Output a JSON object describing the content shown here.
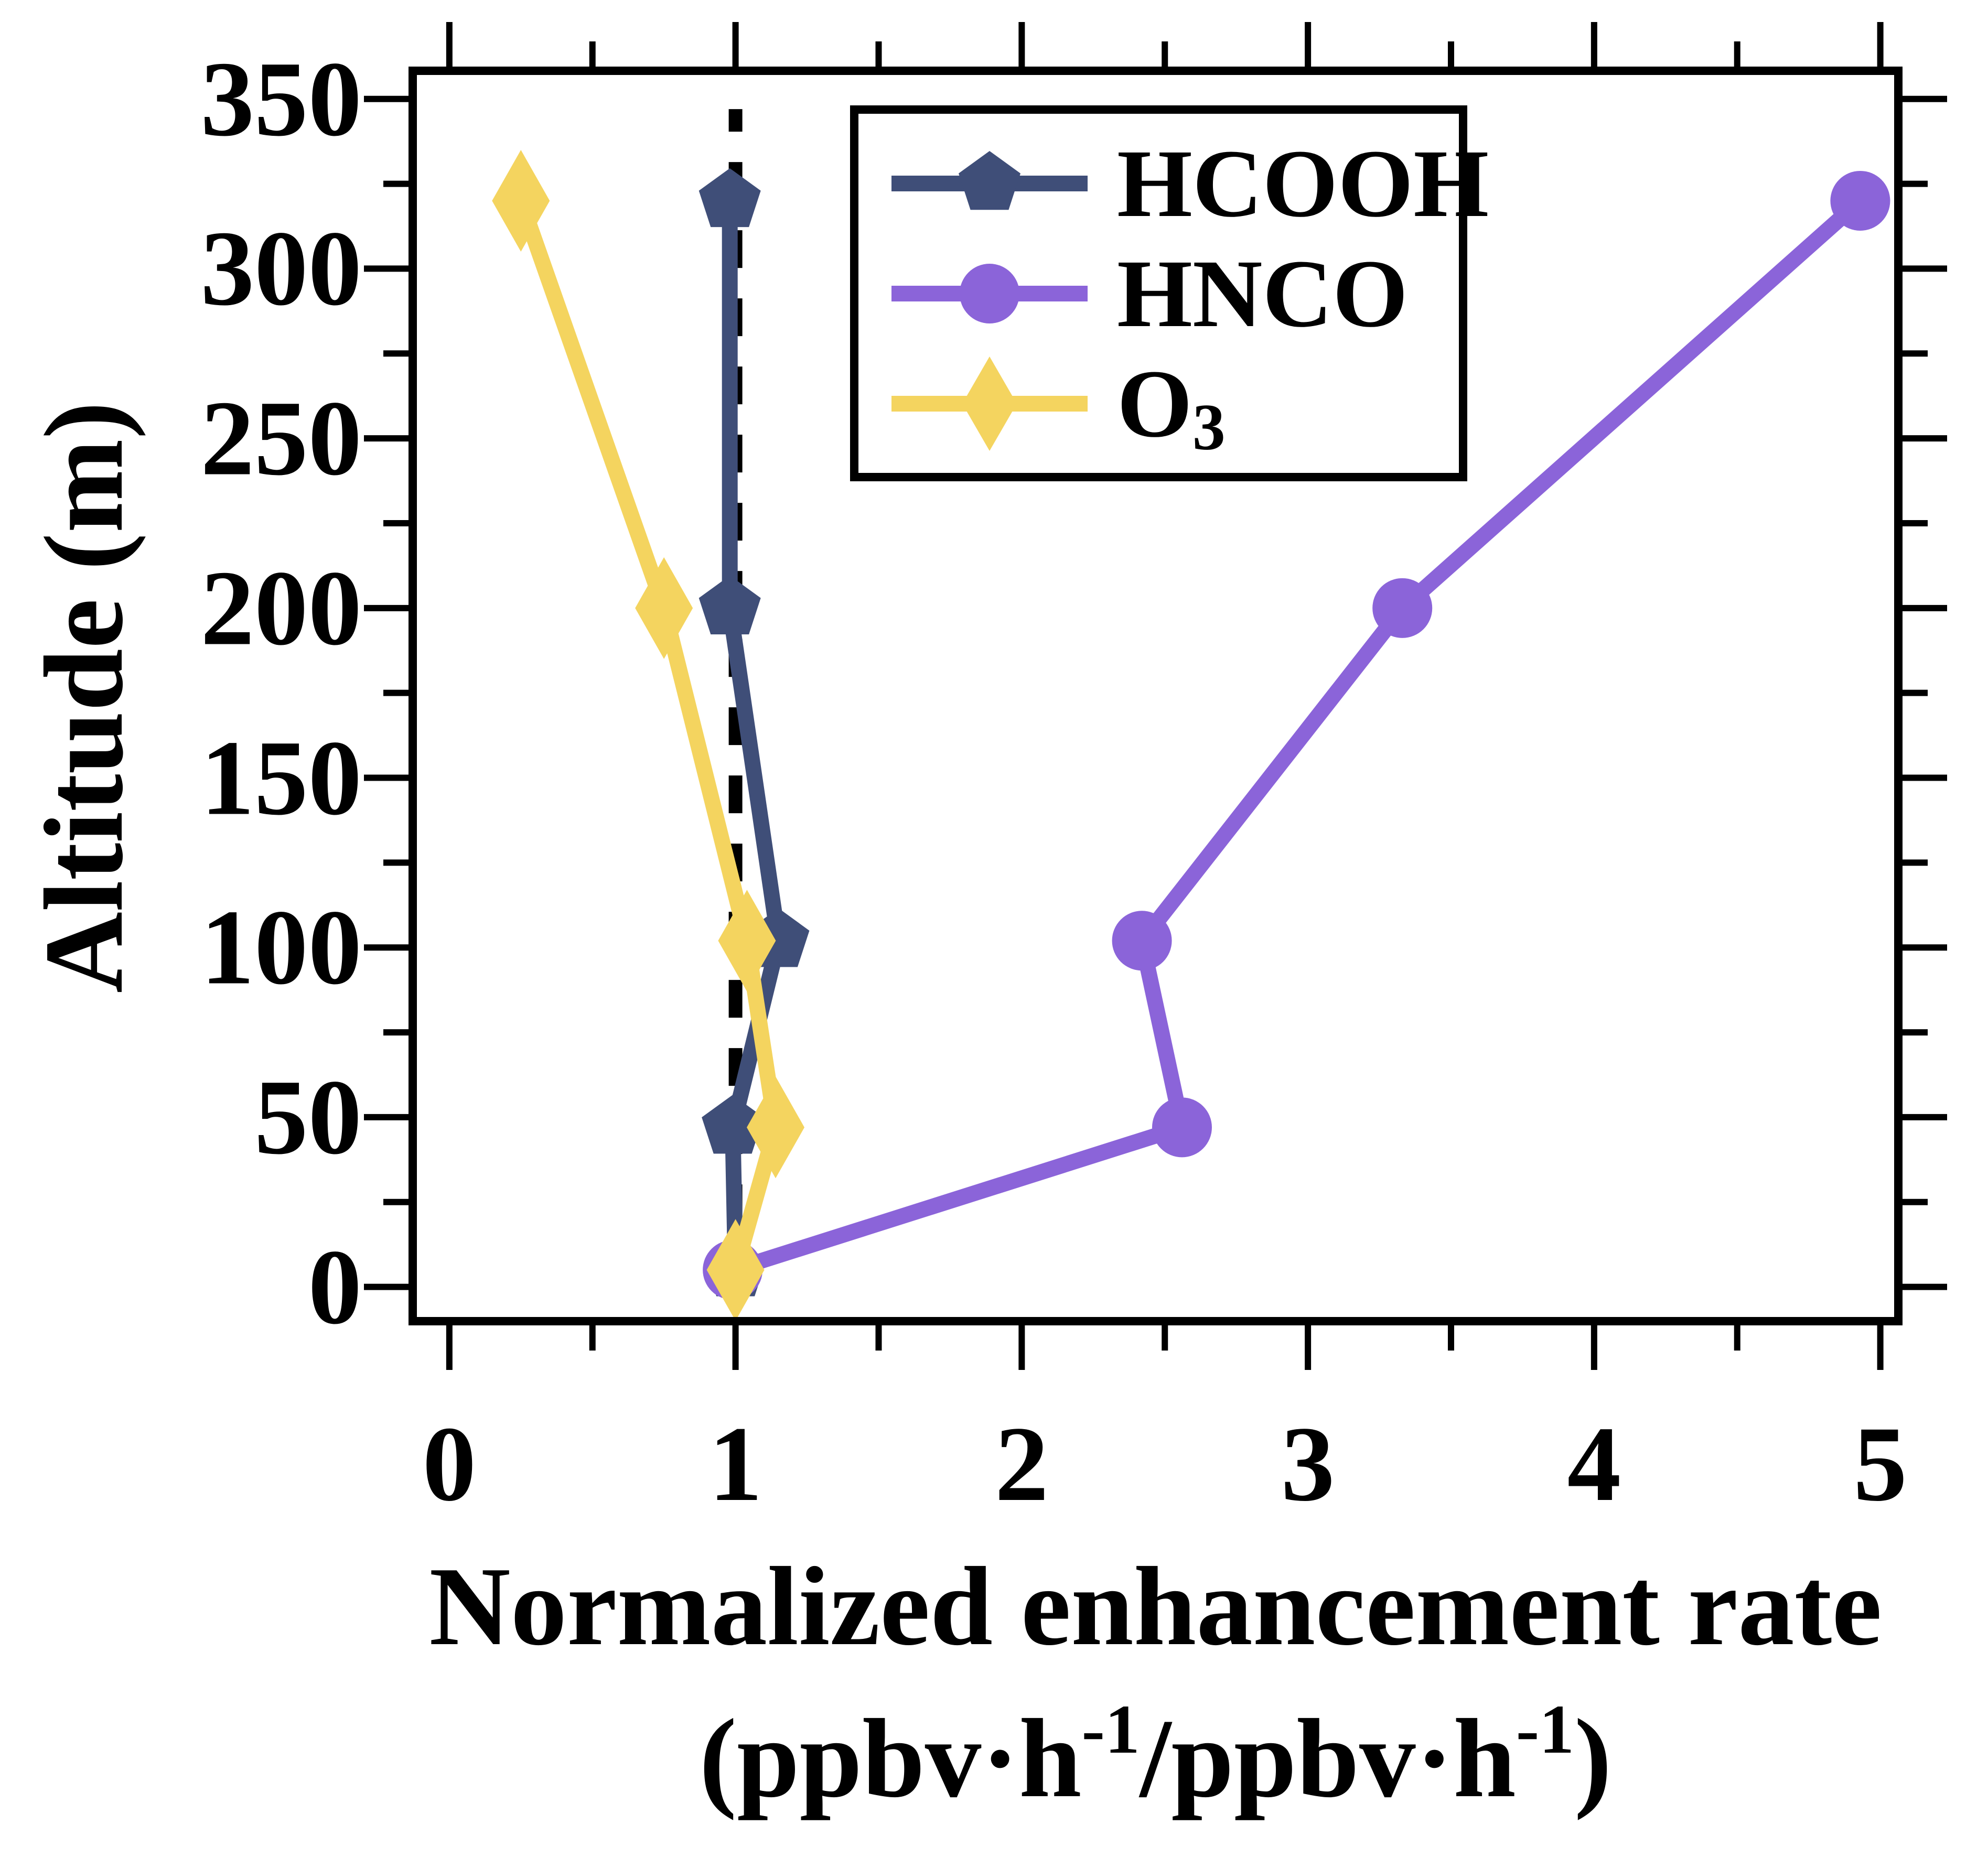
{
  "figure": {
    "ylabel": "Altitude (m)",
    "xlabel_line1": "Normalized enhancement rate",
    "xlabel_line2": {
      "p1": "(ppbv·h",
      "sup1": "-1",
      "p2": "/ppbv·h",
      "sup2": "-1",
      "p3": ")"
    }
  },
  "legend": {
    "items": [
      {
        "label": "HCOOH",
        "marker": "pentagon",
        "color": "#3f4e78"
      },
      {
        "label": "HNCO",
        "marker": "circle",
        "color": "#8b64d9"
      },
      {
        "label_main": "O",
        "label_sub": "3",
        "marker": "diamond",
        "color": "#f4d45f"
      }
    ]
  },
  "chart_data": {
    "type": "line",
    "title": "",
    "xlabel": "Normalized enhancement rate (ppbv·h-1/ppbv·h-1)",
    "ylabel": "Altitude (m)",
    "xlim": [
      -0.128,
      5.063
    ],
    "ylim": [
      -10.1,
      358.3
    ],
    "x_ticks": [
      0,
      1,
      2,
      3,
      4,
      5
    ],
    "x_minor_ticks": [
      0.5,
      1.5,
      2.5,
      3.5,
      4.5
    ],
    "y_ticks": [
      0,
      50,
      100,
      150,
      200,
      250,
      300,
      350
    ],
    "y_minor_ticks": [
      25,
      75,
      125,
      175,
      225,
      275,
      325
    ],
    "reference_line_x": 1,
    "grid": false,
    "legend_position": "upper-left-inside",
    "altitudes_m": [
      5,
      47,
      102,
      200,
      320
    ],
    "series": [
      {
        "name": "HCOOH",
        "marker": "pentagon",
        "color": "#3f4e78",
        "values": [
          1.0,
          0.99,
          1.15,
          0.98,
          0.98
        ]
      },
      {
        "name": "HNCO",
        "marker": "circle",
        "color": "#8b64d9",
        "values": [
          0.99,
          2.56,
          2.42,
          3.33,
          4.93
        ]
      },
      {
        "name": "O3",
        "marker": "diamond",
        "color": "#f4d45f",
        "values": [
          1.0,
          1.14,
          1.04,
          0.75,
          0.25
        ]
      }
    ]
  }
}
